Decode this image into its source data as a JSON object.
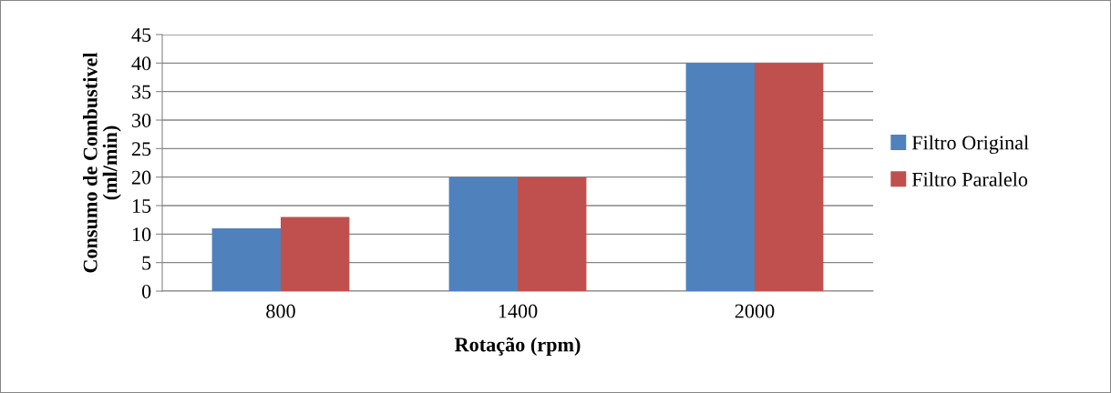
{
  "chart_data": {
    "type": "bar",
    "xlabel": "Rotação (rpm)",
    "ylabel": "Consumo de Combustivel\n(ml/min)",
    "categories": [
      "800",
      "1400",
      "2000"
    ],
    "series": [
      {
        "name": "Filtro Original",
        "color": "#4f81bd",
        "values": [
          11,
          20,
          40
        ]
      },
      {
        "name": "Filtro Paralelo",
        "color": "#c0504d",
        "values": [
          13,
          20,
          40
        ]
      }
    ],
    "ylim": [
      0,
      45
    ],
    "yticks": [
      0,
      5,
      10,
      15,
      20,
      25,
      30,
      35,
      40,
      45
    ],
    "grid": "y",
    "legend": "right"
  }
}
